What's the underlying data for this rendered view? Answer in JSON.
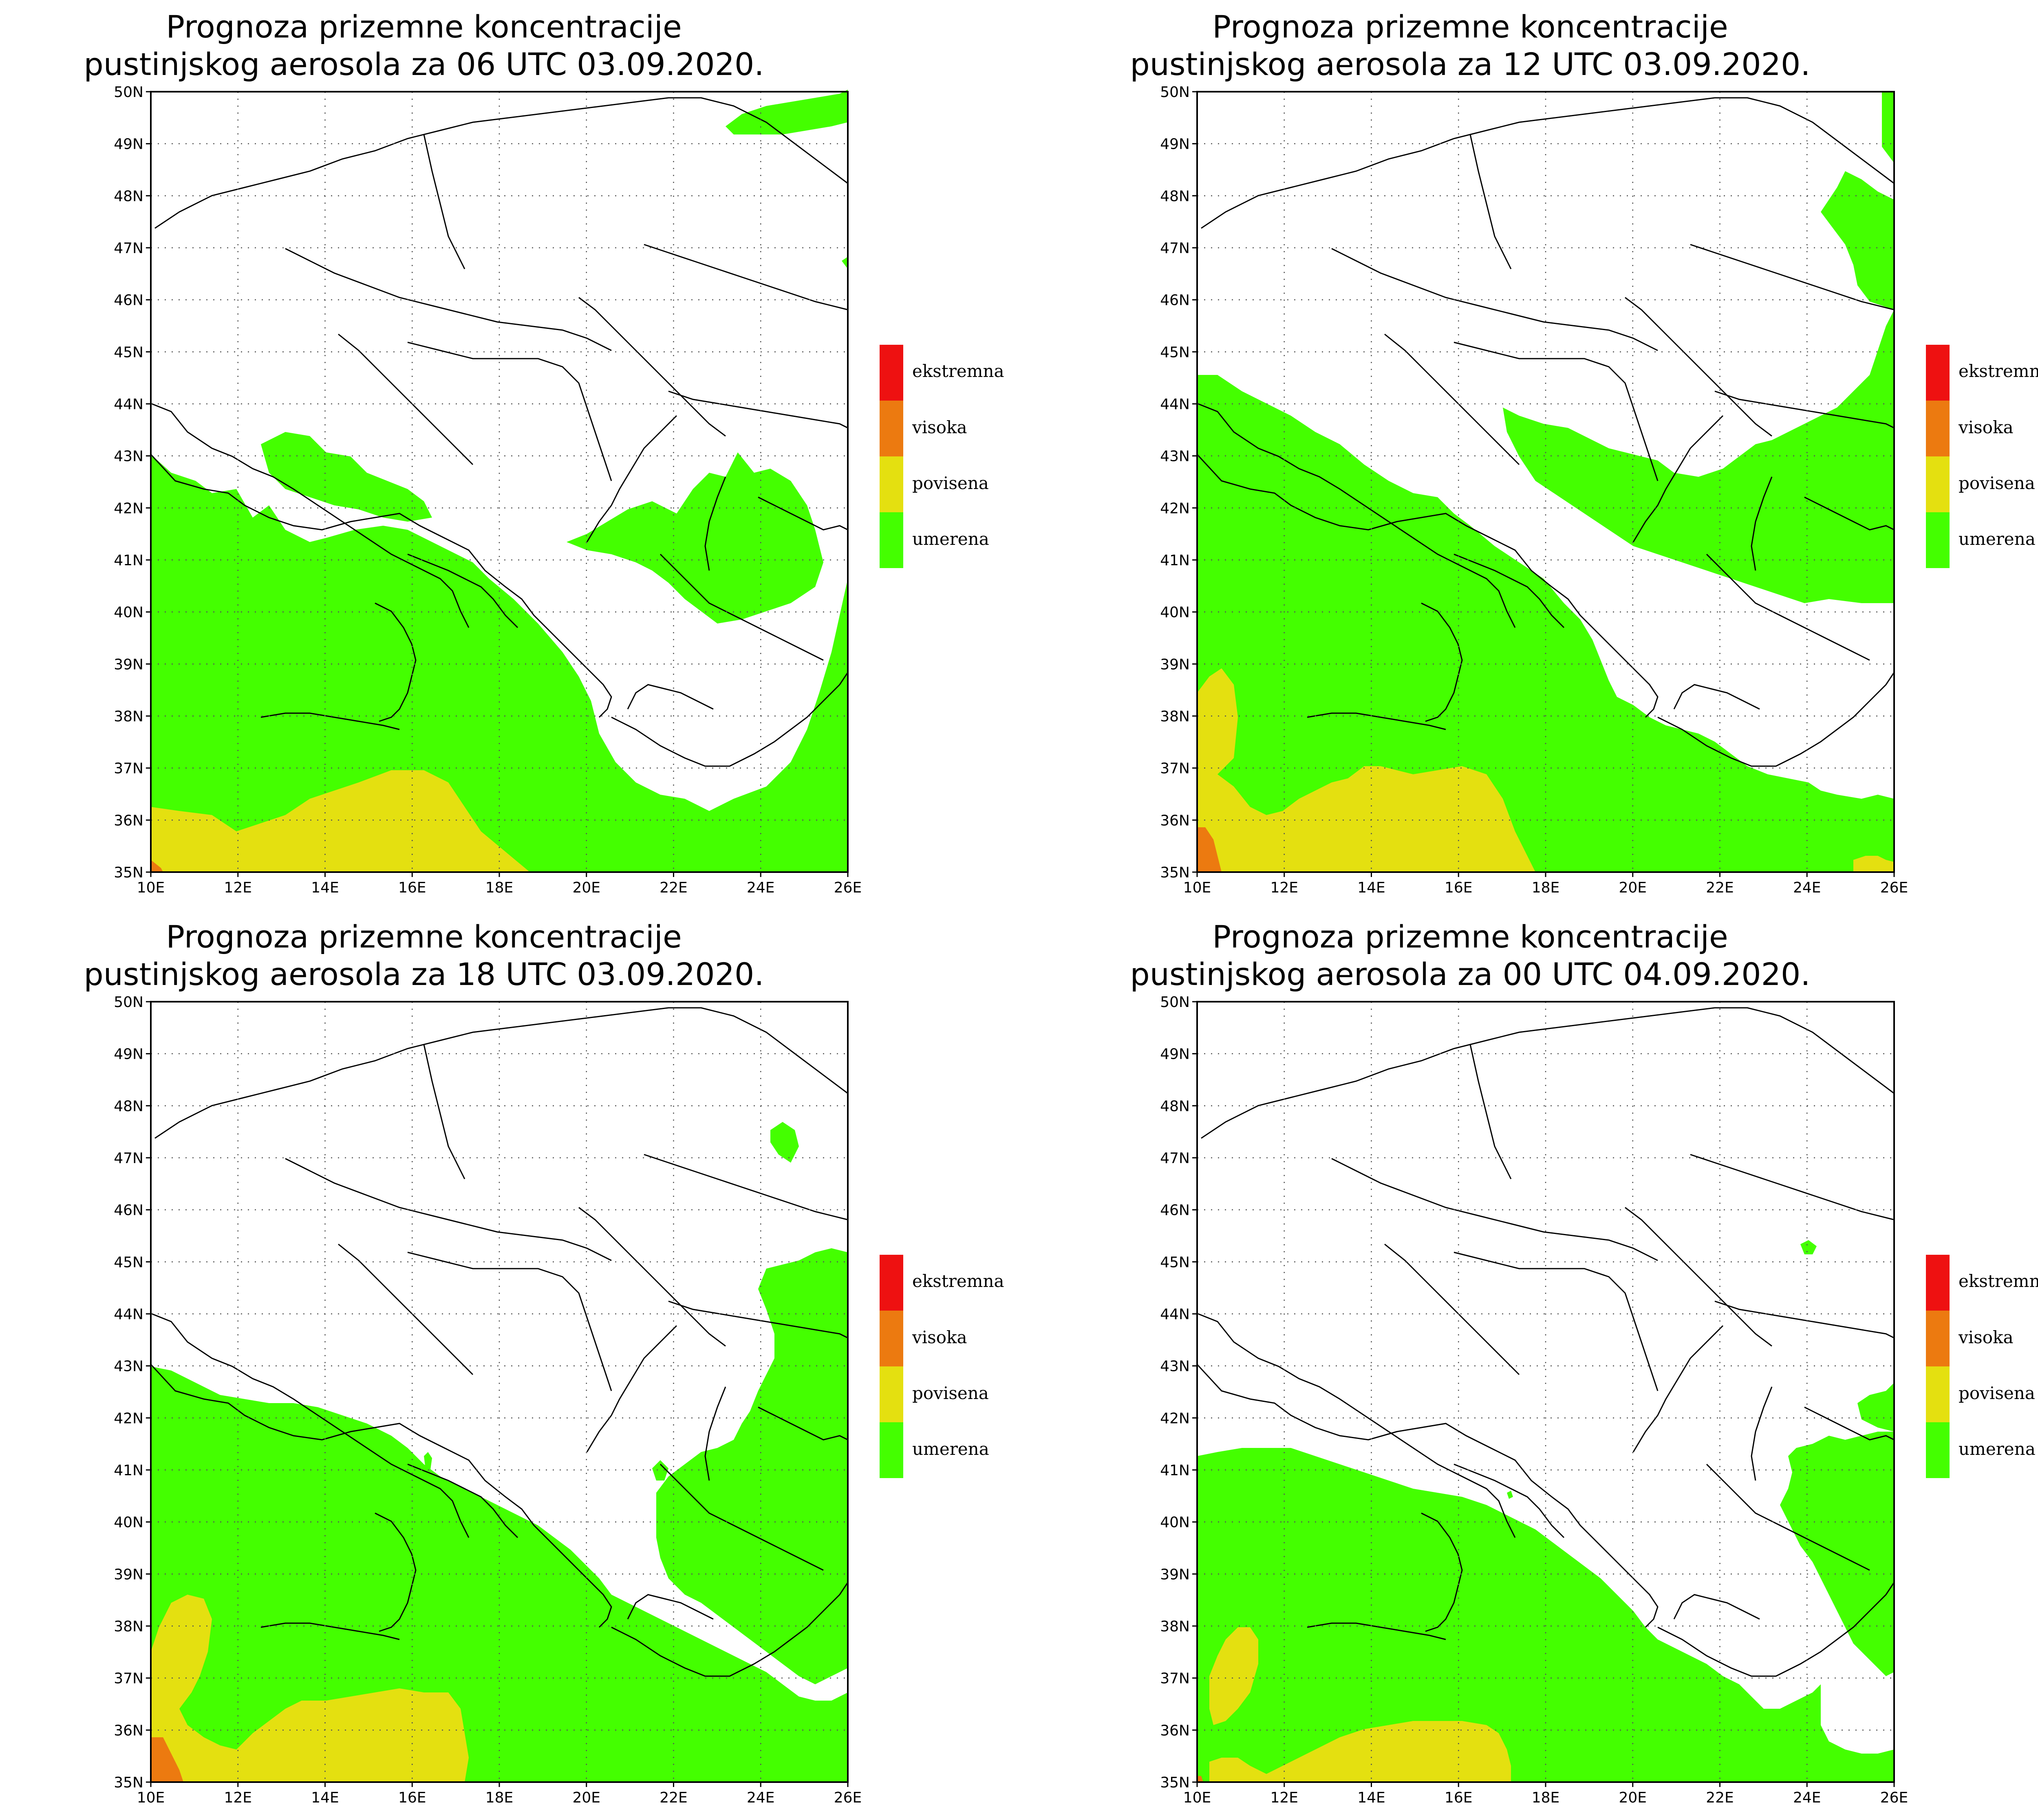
{
  "colors": {
    "ekstremna": "#ee1111",
    "visoka": "#ec7a10",
    "povisena": "#e4e010",
    "umerena": "#44ff00",
    "land_border": "#000000",
    "grid": "#555555"
  },
  "legend": [
    {
      "label": "ekstremna",
      "color_key": "ekstremna"
    },
    {
      "label": "visoka",
      "color_key": "visoka"
    },
    {
      "label": "povisena",
      "color_key": "povisena"
    },
    {
      "label": "umerena",
      "color_key": "umerena"
    }
  ],
  "lat_labels": [
    "50N",
    "49N",
    "48N",
    "47N",
    "46N",
    "45N",
    "44N",
    "43N",
    "42N",
    "41N",
    "40N",
    "39N",
    "38N",
    "37N",
    "36N",
    "35N"
  ],
  "lon_labels": [
    "10E",
    "12E",
    "14E",
    "16E",
    "18E",
    "20E",
    "22E",
    "24E",
    "26E"
  ],
  "panels": [
    {
      "title_line1": "Prognoza prizemne koncentracije",
      "title_line2": "pustinjskog aerosola za 06 UTC 03.09.2020."
    },
    {
      "title_line1": "Prognoza prizemne koncentracije",
      "title_line2": "pustinjskog aerosola za 12 UTC 03.09.2020."
    },
    {
      "title_line1": "Prognoza prizemne koncentracije",
      "title_line2": "pustinjskog aerosola za 18 UTC 03.09.2020."
    },
    {
      "title_line1": "Prognoza prizemne koncentracije",
      "title_line2": "pustinjskog aerosola za 00 UTC 04.09.2020."
    }
  ]
}
